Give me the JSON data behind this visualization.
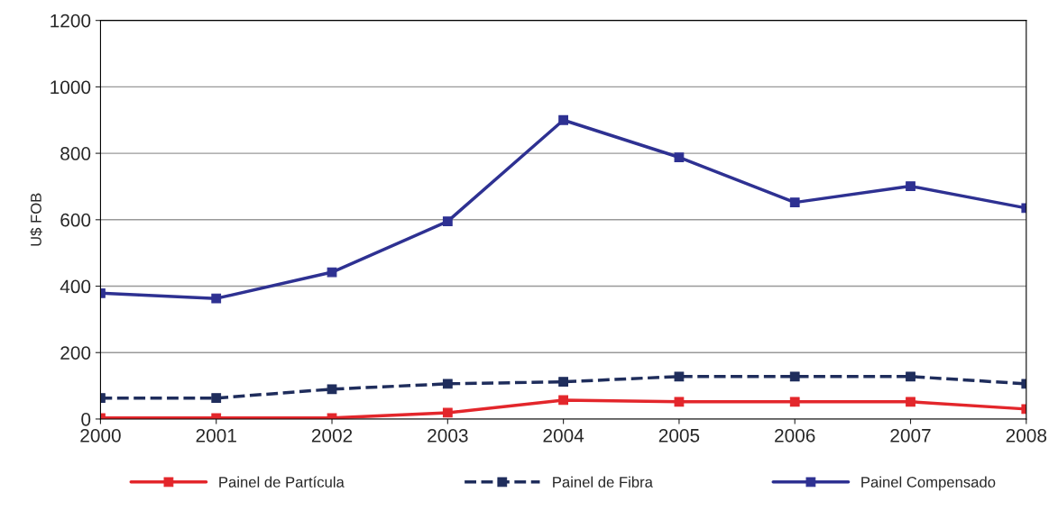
{
  "chart_data": {
    "type": "line",
    "ylabel": "U$ FOB",
    "x": [
      2000,
      2001,
      2002,
      2003,
      2004,
      2005,
      2006,
      2007,
      2008
    ],
    "xlim": [
      2000,
      2008
    ],
    "xticks": [
      2000,
      2001,
      2002,
      2003,
      2004,
      2005,
      2006,
      2007,
      2008
    ],
    "ylim": [
      0,
      1200
    ],
    "yticks": [
      0,
      200,
      400,
      600,
      800,
      1000,
      1200
    ],
    "grid": "y",
    "legend": "bottom",
    "marker": "square",
    "series": [
      {
        "name": "Painel de Partícula",
        "color": "#e3262b",
        "line_style": "solid",
        "values": [
          3,
          3,
          3,
          19,
          57,
          52,
          52,
          52,
          30
        ]
      },
      {
        "name": "Painel de Fibra",
        "color": "#1f2d5c",
        "line_style": "dashed",
        "values": [
          63,
          63,
          90,
          106,
          112,
          128,
          128,
          128,
          106
        ]
      },
      {
        "name": "Painel Compensado",
        "color": "#2e3192",
        "line_style": "solid",
        "values": [
          379,
          363,
          442,
          595,
          900,
          788,
          652,
          701,
          635
        ]
      }
    ]
  }
}
